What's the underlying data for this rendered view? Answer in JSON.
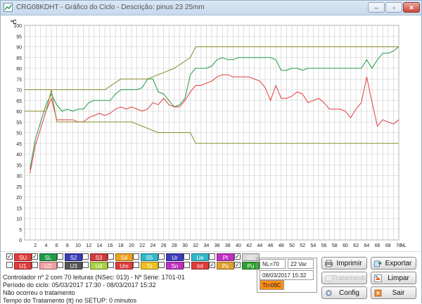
{
  "window": {
    "title": "CRG08KDHT - Gráfico do Ciclo - Descrição: pinus 23 25mm",
    "minimize_label": "–",
    "maximize_label": "▫",
    "close_label": "✕"
  },
  "colors": {
    "green": "#1f9a45",
    "red": "#e03c3c",
    "olive": "#8a8a2a",
    "grid": "#c8c8c8",
    "tt_field": "#ff8c1a"
  },
  "chart_data": {
    "type": "line",
    "ylabel": "ºC",
    "xlabel": "NL",
    "ylim": [
      0,
      100
    ],
    "xlim": [
      0,
      70
    ],
    "y_ticks": [
      "0",
      "5",
      "10",
      "15",
      "20",
      "25",
      "30",
      "35",
      "40",
      "45",
      "50",
      "55",
      "60",
      "65",
      "70",
      "75",
      "80",
      "85",
      "90",
      "95",
      "100"
    ],
    "x_ticks": [
      "2",
      "4",
      "6",
      "8",
      "10",
      "12",
      "14",
      "16",
      "18",
      "20",
      "22",
      "24",
      "26",
      "28",
      "30",
      "32",
      "34",
      "36",
      "38",
      "40",
      "42",
      "44",
      "46",
      "48",
      "50",
      "52",
      "54",
      "56",
      "58",
      "60",
      "62",
      "64",
      "66",
      "68",
      "70"
    ],
    "grid": true,
    "series": [
      {
        "color": "#1f9a45",
        "x": [
          1,
          2,
          3,
          4,
          5,
          6,
          7,
          8,
          9,
          10,
          11,
          12,
          13,
          14,
          15,
          16,
          17,
          18,
          19,
          20,
          21,
          22,
          23,
          24,
          25,
          26,
          27,
          28,
          29,
          30,
          31,
          32,
          33,
          34,
          35,
          36,
          37,
          38,
          39,
          40,
          41,
          42,
          43,
          44,
          45,
          46,
          47,
          48,
          49,
          50,
          51,
          52,
          53,
          54,
          55,
          56,
          57,
          58,
          59,
          60,
          61,
          62,
          63,
          64,
          65,
          66,
          67,
          68,
          69,
          70
        ],
        "values": [
          33,
          47,
          55,
          63,
          68,
          63,
          60,
          61,
          60,
          61,
          61,
          64,
          65,
          65,
          65,
          65,
          68,
          70,
          70,
          70,
          70,
          71,
          75,
          75,
          69,
          68,
          65,
          62,
          63,
          66,
          77,
          80,
          80,
          80,
          81,
          84,
          85,
          84,
          84,
          85,
          85,
          85,
          85,
          85,
          85,
          85,
          84,
          79,
          79,
          80,
          80,
          79,
          80,
          80,
          80,
          80,
          80,
          80,
          80,
          80,
          80,
          80,
          80,
          84,
          80,
          84,
          87,
          87,
          88,
          90
        ]
      },
      {
        "color": "#e03c3c",
        "x": [
          1,
          2,
          3,
          4,
          5,
          6,
          7,
          8,
          9,
          10,
          11,
          12,
          13,
          14,
          15,
          16,
          17,
          18,
          19,
          20,
          21,
          22,
          23,
          24,
          25,
          26,
          27,
          28,
          29,
          30,
          31,
          32,
          33,
          34,
          35,
          36,
          37,
          38,
          39,
          40,
          41,
          42,
          43,
          44,
          45,
          46,
          47,
          48,
          49,
          50,
          51,
          52,
          53,
          54,
          55,
          56,
          57,
          58,
          59,
          60,
          61,
          62,
          63,
          64,
          65,
          66,
          67,
          68,
          69,
          70
        ],
        "values": [
          31,
          44,
          52,
          60,
          66,
          56,
          56,
          56,
          56,
          55,
          55,
          57,
          58,
          59,
          58,
          59,
          61,
          62,
          61,
          62,
          61,
          60,
          61,
          64,
          63,
          66,
          63,
          62,
          62,
          65,
          69,
          72,
          72,
          73,
          74,
          76,
          77,
          77,
          76,
          76,
          76,
          76,
          75,
          74,
          71,
          65,
          72,
          66,
          66,
          67,
          69,
          68,
          64,
          65,
          66,
          64,
          61,
          61,
          61,
          60,
          57,
          61,
          64,
          76,
          64,
          53,
          56,
          55,
          54,
          56
        ]
      },
      {
        "color": "#8a8a2a",
        "x": [
          0,
          1,
          1,
          6,
          6,
          10,
          10,
          15,
          15,
          18,
          18,
          23,
          23,
          28,
          28,
          31,
          31,
          32,
          32,
          47,
          47,
          70
        ],
        "values": [
          70,
          70,
          70,
          70,
          70,
          70,
          70,
          70,
          70,
          75,
          75,
          75,
          75,
          80,
          80,
          85,
          85,
          90,
          90,
          90,
          90,
          90
        ]
      },
      {
        "color": "#8a8a2a",
        "x": [
          0,
          1,
          1,
          4,
          4,
          5,
          5,
          6,
          6,
          19,
          19,
          20,
          20,
          25,
          25,
          31,
          31,
          32,
          32,
          47,
          47,
          70
        ],
        "values": [
          60,
          60,
          60,
          60,
          60,
          70,
          70,
          55,
          55,
          55,
          55,
          55,
          55,
          50,
          50,
          50,
          50,
          45,
          45,
          45,
          45,
          45
        ]
      }
    ]
  },
  "channels": {
    "row1": [
      {
        "label": "SU",
        "checked": true,
        "color": "#e03c3c"
      },
      {
        "label": "SL",
        "checked": true,
        "color": "#1f9a45"
      },
      {
        "label": "S2",
        "checked": false,
        "color": "#3d3db8"
      },
      {
        "label": "S3",
        "checked": false,
        "color": "#d23a3a"
      },
      {
        "label": "S4",
        "checked": false,
        "color": "#f0a020"
      },
      {
        "label": "S5",
        "checked": false,
        "color": "#30b8c8"
      },
      {
        "label": "Ur",
        "checked": false,
        "color": "#3d3db8"
      },
      {
        "label": "Ue",
        "checked": false,
        "color": "#30b8c8"
      },
      {
        "label": "Pt",
        "checked": false,
        "color": "#c030c0"
      },
      {
        "label": "SO",
        "checked": true,
        "color": "#d8d8d8"
      }
    ],
    "row2": [
      {
        "label": "U1",
        "checked": false,
        "color": "#e03c3c"
      },
      {
        "label": "U2",
        "checked": false,
        "color": "#f0a0a0"
      },
      {
        "label": "U3",
        "checked": false,
        "color": "#555555"
      },
      {
        "label": "U4",
        "checked": false,
        "color": "#a8d040"
      },
      {
        "label": "Um",
        "checked": false,
        "color": "#e03c3c"
      },
      {
        "label": "Ts",
        "checked": false,
        "color": "#f0c020"
      },
      {
        "label": "Sn",
        "checked": false,
        "color": "#c030c0"
      },
      {
        "label": "Int",
        "checked": false,
        "color": "#e03c3c"
      },
      {
        "label": "Ps",
        "checked": true,
        "color": "#e0a030"
      },
      {
        "label": "Pu",
        "checked": true,
        "color": "#30a030"
      }
    ],
    "check_glyph": "✓"
  },
  "info": {
    "line1": "Controlador nº 2 com 70 leituras (NSec: 013) - Nº Série: 1701-01",
    "line2": "Período do ciclo: 05/03/2017 17:30 - 08/03/2017 15:32",
    "line3": "Não ocorreu o tratamento",
    "line4": "Tempo do Tratamento (tt) no SETUP: 0 minutos"
  },
  "readout": {
    "nl": "NL=70",
    "var": "22 Var",
    "datetime": "08/03/2017 15:32",
    "tt": "Tt=09C"
  },
  "buttons": {
    "print": "Imprimir",
    "export": "Exportar",
    "treatment": "Tratamento",
    "clear": "Limpar",
    "config": "Config",
    "exit": "Sair"
  }
}
